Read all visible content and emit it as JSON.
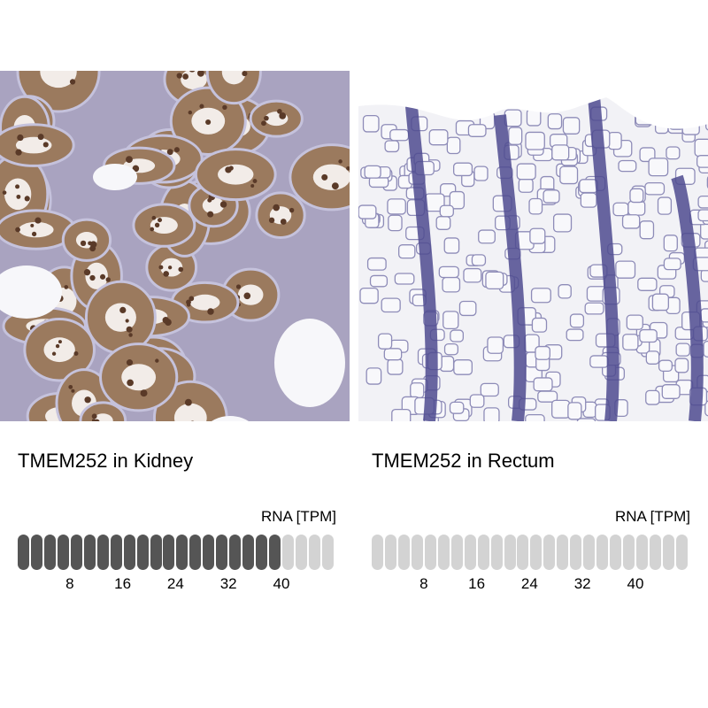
{
  "panels": [
    {
      "title": "TMEM252 in Kidney",
      "rna_label": "RNA [TPM]",
      "tissue": "Kidney",
      "image_tone": "brown"
    },
    {
      "title": "TMEM252 in Rectum",
      "rna_label": "RNA [TPM]",
      "tissue": "Rectum",
      "image_tone": "blue"
    }
  ],
  "chart_data": [
    {
      "type": "bar",
      "title": "TMEM252 in Kidney",
      "ylabel": "RNA [TPM]",
      "total_segments": 24,
      "filled_segments": 20,
      "tick_labels": [
        "8",
        "16",
        "24",
        "32",
        "40"
      ],
      "filled_color": "#555555",
      "empty_color": "#d3d3d3"
    },
    {
      "type": "bar",
      "title": "TMEM252 in Rectum",
      "ylabel": "RNA [TPM]",
      "total_segments": 24,
      "filled_segments": 0,
      "tick_labels": [
        "8",
        "16",
        "24",
        "32",
        "40"
      ],
      "filled_color": "#555555",
      "empty_color": "#d3d3d3"
    }
  ]
}
